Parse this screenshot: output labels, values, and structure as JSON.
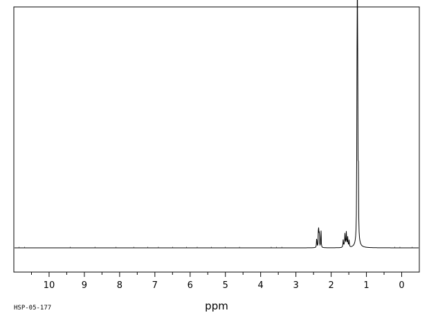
{
  "chart_data": {
    "type": "line",
    "title": "",
    "xlabel": "ppm",
    "ylabel": "",
    "xlim": [
      11.0,
      -0.5
    ],
    "ylim": [
      -0.08,
      1.0
    ],
    "x_reversed": true,
    "grid": false,
    "major_ticks": [
      10,
      9,
      8,
      7,
      6,
      5,
      4,
      3,
      2,
      1,
      0
    ],
    "tick_labels": [
      "10",
      "9",
      "8",
      "7",
      "6",
      "5",
      "4",
      "3",
      "2",
      "1",
      "0"
    ],
    "series": [
      {
        "peaks": [
          {
            "ppm": 2.41,
            "height": 0.055
          },
          {
            "ppm": 2.36,
            "height": 0.12
          },
          {
            "ppm": 2.34,
            "height": 0.09
          },
          {
            "ppm": 2.29,
            "height": 0.095
          },
          {
            "ppm": 1.66,
            "height": 0.03
          },
          {
            "ppm": 1.61,
            "height": 0.045
          },
          {
            "ppm": 1.57,
            "height": 0.05
          },
          {
            "ppm": 1.53,
            "height": 0.035
          },
          {
            "ppm": 1.49,
            "height": 0.03
          },
          {
            "ppm": 1.27,
            "height": 0.39
          },
          {
            "ppm": 1.26,
            "height": 0.96
          },
          {
            "ppm": 1.25,
            "height": 0.8
          },
          {
            "ppm": 1.23,
            "height": 0.33
          }
        ],
        "color": "#000000"
      }
    ]
  },
  "footer": {
    "sample_id": "HSP-05-177"
  }
}
